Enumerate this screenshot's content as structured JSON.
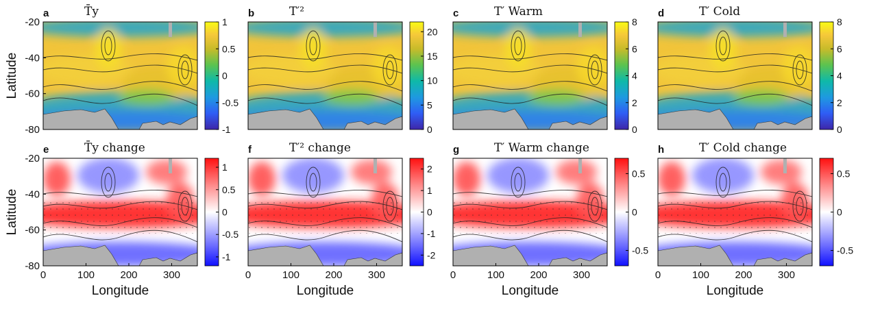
{
  "figure": {
    "x_axis_label": "Longitude",
    "y_axis_label": "Latitude"
  },
  "chart_data": [
    {
      "type": "heatmap",
      "label": "a",
      "title": "T̄y",
      "x_ticks": [],
      "y_ticks": [
        "-20",
        "-40",
        "-60",
        "-80"
      ],
      "xlim": [
        0,
        360
      ],
      "ylim": [
        -80,
        -20
      ],
      "colormap": "parula",
      "clim": [
        -1,
        1
      ],
      "colorbar_ticks": [
        "1",
        "0.5",
        "0",
        "-0.5",
        "-1"
      ]
    },
    {
      "type": "heatmap",
      "label": "b",
      "title": "T′²",
      "x_ticks": [],
      "y_ticks": [],
      "xlim": [
        0,
        360
      ],
      "ylim": [
        -80,
        -20
      ],
      "colormap": "parula",
      "clim": [
        0,
        22
      ],
      "colorbar_ticks": [
        "20",
        "15",
        "10",
        "5",
        "0"
      ]
    },
    {
      "type": "heatmap",
      "label": "c",
      "title": "T′ Warm",
      "x_ticks": [],
      "y_ticks": [],
      "xlim": [
        0,
        360
      ],
      "ylim": [
        -80,
        -20
      ],
      "colormap": "parula",
      "clim": [
        0,
        8
      ],
      "colorbar_ticks": [
        "8",
        "6",
        "4",
        "2",
        "0"
      ]
    },
    {
      "type": "heatmap",
      "label": "d",
      "title": "T′ Cold",
      "x_ticks": [],
      "y_ticks": [],
      "xlim": [
        0,
        360
      ],
      "ylim": [
        -80,
        -20
      ],
      "colormap": "parula",
      "clim": [
        0,
        8
      ],
      "colorbar_ticks": [
        "8",
        "6",
        "4",
        "2",
        "0"
      ]
    },
    {
      "type": "heatmap",
      "label": "e",
      "title": "T̄y change",
      "x_ticks": [
        "0",
        "100",
        "200",
        "300"
      ],
      "y_ticks": [
        "-20",
        "-40",
        "-60",
        "-80"
      ],
      "xlim": [
        0,
        360
      ],
      "ylim": [
        -80,
        -20
      ],
      "colormap": "blue-white-red",
      "clim": [
        -1.2,
        1.2
      ],
      "colorbar_ticks": [
        "1",
        "0.5",
        "0",
        "-0.5",
        "-1"
      ]
    },
    {
      "type": "heatmap",
      "label": "f",
      "title": "T′² change",
      "x_ticks": [
        "0",
        "100",
        "200",
        "300"
      ],
      "y_ticks": [],
      "xlim": [
        0,
        360
      ],
      "ylim": [
        -80,
        -20
      ],
      "colormap": "blue-white-red",
      "clim": [
        -2.5,
        2.5
      ],
      "colorbar_ticks": [
        "2",
        "1",
        "0",
        "-1",
        "-2"
      ]
    },
    {
      "type": "heatmap",
      "label": "g",
      "title": "T′ Warm change",
      "x_ticks": [
        "0",
        "100",
        "200",
        "300"
      ],
      "y_ticks": [],
      "xlim": [
        0,
        360
      ],
      "ylim": [
        -80,
        -20
      ],
      "colormap": "blue-white-red",
      "clim": [
        -0.7,
        0.7
      ],
      "colorbar_ticks": [
        "0.5",
        "0",
        "-0.5"
      ]
    },
    {
      "type": "heatmap",
      "label": "h",
      "title": "T′ Cold change",
      "x_ticks": [
        "0",
        "100",
        "200",
        "300"
      ],
      "y_ticks": [],
      "xlim": [
        0,
        360
      ],
      "ylim": [
        -80,
        -20
      ],
      "colormap": "blue-white-red",
      "clim": [
        -0.7,
        0.7
      ],
      "colorbar_ticks": [
        "0.5",
        "0",
        "-0.5"
      ]
    }
  ]
}
